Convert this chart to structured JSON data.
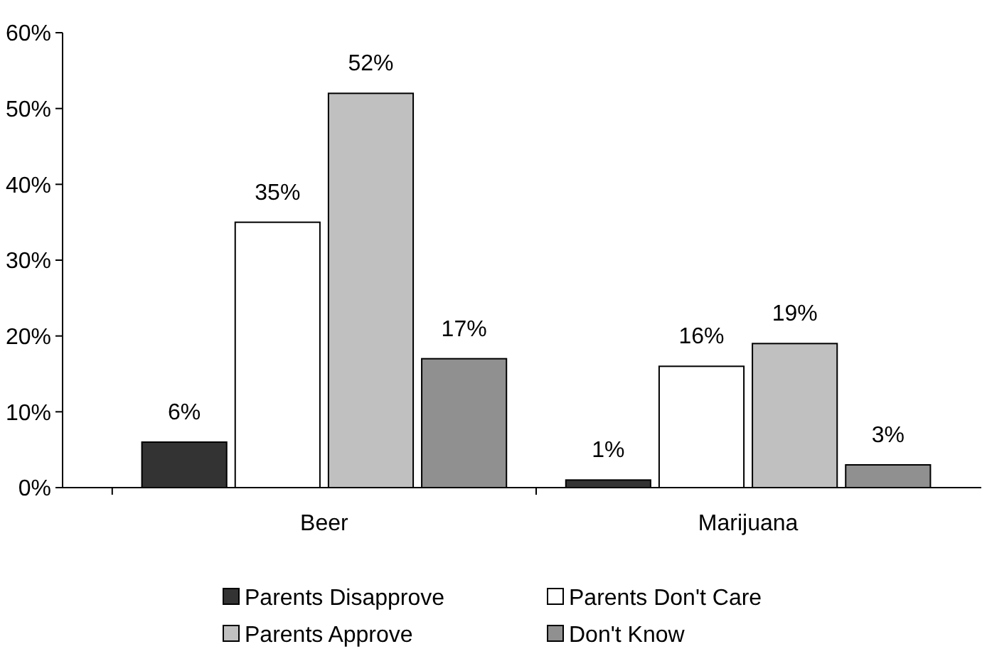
{
  "chart_data": {
    "type": "bar",
    "categories": [
      "Beer",
      "Marijuana"
    ],
    "series": [
      {
        "name": "Parents Disapprove",
        "color": "#333333",
        "values": [
          6,
          1
        ],
        "value_labels": [
          "6%",
          "1%"
        ]
      },
      {
        "name": "Parents Don't Care",
        "color": "#ffffff",
        "values": [
          35,
          16
        ],
        "value_labels": [
          "35%",
          "16%"
        ]
      },
      {
        "name": "Parents Approve",
        "color": "#c0c0c0",
        "values": [
          52,
          19
        ],
        "value_labels": [
          "52%",
          "19%"
        ]
      },
      {
        "name": "Don't Know",
        "color": "#909090",
        "values": [
          17,
          3
        ],
        "value_labels": [
          "17%",
          "3%"
        ]
      }
    ],
    "ylim": [
      0,
      60
    ],
    "yticks": [
      {
        "value": 0,
        "label": "0%"
      },
      {
        "value": 10,
        "label": "10%"
      },
      {
        "value": 20,
        "label": "20%"
      },
      {
        "value": 30,
        "label": "30%"
      },
      {
        "value": 40,
        "label": "40%"
      },
      {
        "value": 50,
        "label": "50%"
      },
      {
        "value": 60,
        "label": "60%"
      }
    ],
    "legend": "bottom",
    "grid": false
  }
}
